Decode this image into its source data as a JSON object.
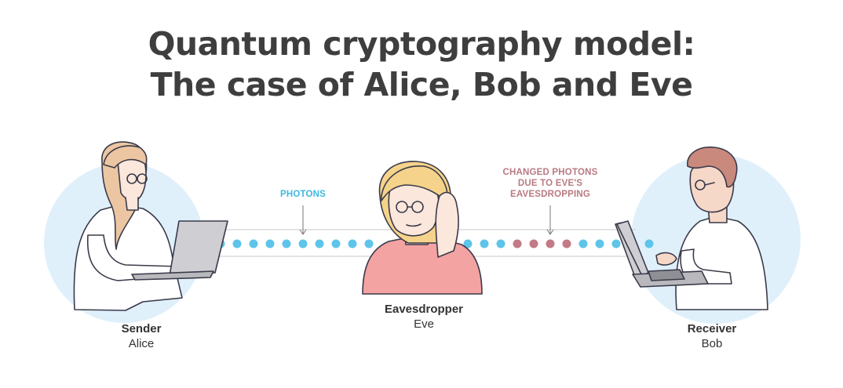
{
  "title": {
    "line1": "Quantum cryptography model:",
    "line2": "The case of Alice, Bob and Eve"
  },
  "annotations": {
    "photons": "PHOTONS",
    "changed_photons": [
      "CHANGED PHOTONS",
      "DUE TO EVE'S",
      "EAVESDROPPING"
    ]
  },
  "people": {
    "sender": {
      "role": "Sender",
      "name": "Alice"
    },
    "eavesdropper": {
      "role": "Eavesdropper",
      "name": "Eve"
    },
    "receiver": {
      "role": "Receiver",
      "name": "Bob"
    }
  },
  "photon_stream": {
    "left_segment": [
      "blue",
      "blue",
      "blue",
      "blue",
      "blue",
      "blue",
      "blue",
      "blue",
      "blue",
      "blue"
    ],
    "right_segment": [
      "blue",
      "blue",
      "blue",
      "rose",
      "rose",
      "rose",
      "rose",
      "blue",
      "blue",
      "blue",
      "rose",
      "blue"
    ]
  },
  "colors": {
    "photon_blue": "#5ec4ea",
    "photon_changed": "#c27a86",
    "photons_label": "#3fb8e0",
    "changed_label": "#b87a82",
    "backdrop_blue": "#dff0fb",
    "eve_shirt": "#f4a3a3",
    "eve_hair": "#f5d38a",
    "title": "#3e3e3e"
  }
}
